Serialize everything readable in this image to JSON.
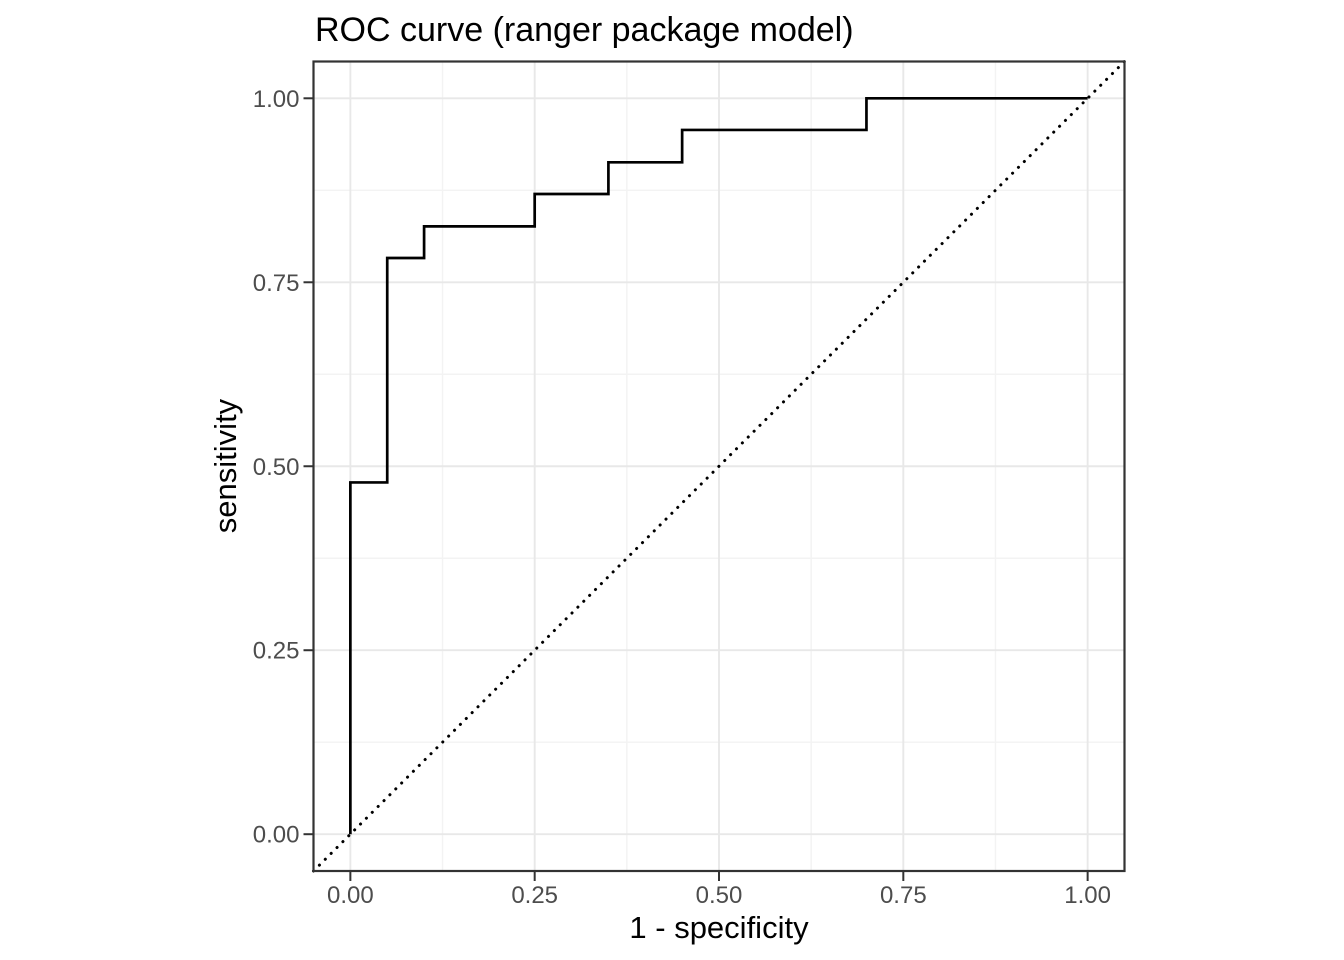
{
  "chart_data": {
    "type": "line",
    "subtype": "roc-step-curve",
    "title": "ROC curve (ranger package model)",
    "xlabel": "1 - specificity",
    "ylabel": "sensitivity",
    "xlim": [
      -0.05,
      1.05
    ],
    "ylim": [
      -0.05,
      1.05
    ],
    "grid": "major-and-minor",
    "legend": "none",
    "x_ticks": {
      "values": [
        0,
        0.25,
        0.5,
        0.75,
        1
      ],
      "labels": [
        "0.00",
        "0.25",
        "0.50",
        "0.75",
        "1.00"
      ],
      "minor": [
        0.125,
        0.375,
        0.625,
        0.875
      ]
    },
    "y_ticks": {
      "values": [
        0,
        0.25,
        0.5,
        0.75,
        1
      ],
      "labels": [
        "0.00",
        "0.25",
        "0.50",
        "0.75",
        "1.00"
      ],
      "minor": [
        0.125,
        0.375,
        0.625,
        0.875
      ]
    },
    "series": [
      {
        "name": "roc-curve",
        "style": "step-solid",
        "color": "#000000",
        "points": [
          [
            0,
            0
          ],
          [
            0,
            0.478
          ],
          [
            0.05,
            0.478
          ],
          [
            0.05,
            0.783
          ],
          [
            0.1,
            0.783
          ],
          [
            0.1,
            0.826
          ],
          [
            0.25,
            0.826
          ],
          [
            0.25,
            0.87
          ],
          [
            0.35,
            0.87
          ],
          [
            0.35,
            0.913
          ],
          [
            0.45,
            0.913
          ],
          [
            0.45,
            0.957
          ],
          [
            0.7,
            0.957
          ],
          [
            0.7,
            1
          ],
          [
            1,
            1
          ]
        ]
      },
      {
        "name": "chance-diagonal",
        "style": "dotted",
        "color": "#000000",
        "points": [
          [
            -0.05,
            -0.05
          ],
          [
            1.05,
            1.05
          ]
        ]
      }
    ],
    "colors": {
      "background": "#ffffff",
      "panel_background": "#ffffff",
      "grid_major": "#e8e8e8",
      "grid_minor": "#f3f3f3",
      "panel_border": "#333333",
      "tick": "#333333",
      "tick_label": "#4d4d4d",
      "text": "#000000"
    }
  }
}
